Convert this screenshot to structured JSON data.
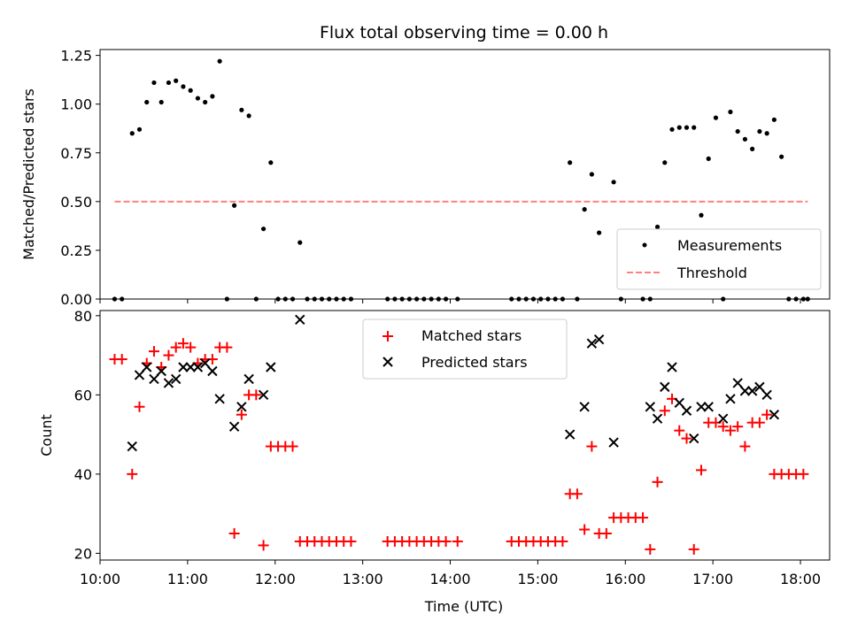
{
  "title": "Flux total observing time = 0.00 h",
  "xlabel": "Time (UTC)",
  "x_ticks": [
    "10:00",
    "11:00",
    "12:00",
    "13:00",
    "14:00",
    "15:00",
    "16:00",
    "17:00",
    "18:00"
  ],
  "colors": {
    "measurements": "#000000",
    "threshold": "#ff7f7f",
    "matched": "#ff0000",
    "predicted": "#000000"
  },
  "chart_data": [
    {
      "type": "scatter",
      "ylabel": "Matched/Predicted stars",
      "xlim": [
        "10:00",
        "18:20"
      ],
      "ylim": [
        0,
        1.28
      ],
      "y_ticks": [
        "0.00",
        "0.25",
        "0.50",
        "0.75",
        "1.00",
        "1.25"
      ],
      "legend": {
        "position": "lower-right",
        "entries": [
          "Measurements",
          "Threshold"
        ]
      },
      "series": [
        {
          "name": "Measurements",
          "marker": "dot",
          "points": [
            [
              "10:10",
              0
            ],
            [
              "10:15",
              0
            ],
            [
              "10:22",
              0.85
            ],
            [
              "10:27",
              0.87
            ],
            [
              "10:32",
              1.01
            ],
            [
              "10:37",
              1.11
            ],
            [
              "10:42",
              1.01
            ],
            [
              "10:47",
              1.11
            ],
            [
              "10:52",
              1.12
            ],
            [
              "10:57",
              1.09
            ],
            [
              "11:02",
              1.07
            ],
            [
              "11:07",
              1.03
            ],
            [
              "11:12",
              1.01
            ],
            [
              "11:17",
              1.04
            ],
            [
              "11:22",
              1.22
            ],
            [
              "11:27",
              0
            ],
            [
              "11:32",
              0.48
            ],
            [
              "11:37",
              0.97
            ],
            [
              "11:42",
              0.94
            ],
            [
              "11:47",
              0
            ],
            [
              "11:52",
              0.36
            ],
            [
              "11:57",
              0.7
            ],
            [
              "12:02",
              0
            ],
            [
              "12:07",
              0
            ],
            [
              "12:12",
              0
            ],
            [
              "12:17",
              0.29
            ],
            [
              "12:22",
              0
            ],
            [
              "12:27",
              0
            ],
            [
              "12:32",
              0
            ],
            [
              "12:37",
              0
            ],
            [
              "12:42",
              0
            ],
            [
              "12:47",
              0
            ],
            [
              "12:52",
              0
            ],
            [
              "13:17",
              0
            ],
            [
              "13:22",
              0
            ],
            [
              "13:27",
              0
            ],
            [
              "13:32",
              0
            ],
            [
              "13:37",
              0
            ],
            [
              "13:42",
              0
            ],
            [
              "13:47",
              0
            ],
            [
              "13:52",
              0
            ],
            [
              "13:57",
              0
            ],
            [
              "14:05",
              0
            ],
            [
              "14:42",
              0
            ],
            [
              "14:47",
              0
            ],
            [
              "14:52",
              0
            ],
            [
              "14:57",
              0
            ],
            [
              "15:02",
              0
            ],
            [
              "15:07",
              0
            ],
            [
              "15:12",
              0
            ],
            [
              "15:17",
              0
            ],
            [
              "15:22",
              0.7
            ],
            [
              "15:27",
              0
            ],
            [
              "15:32",
              0.46
            ],
            [
              "15:37",
              0.64
            ],
            [
              "15:42",
              0.34
            ],
            [
              "15:52",
              0.6
            ],
            [
              "15:57",
              0
            ],
            [
              "16:12",
              0
            ],
            [
              "16:17",
              0
            ],
            [
              "16:22",
              0.37
            ],
            [
              "16:27",
              0.7
            ],
            [
              "16:32",
              0.87
            ],
            [
              "16:37",
              0.88
            ],
            [
              "16:42",
              0.88
            ],
            [
              "16:47",
              0.88
            ],
            [
              "16:52",
              0.43
            ],
            [
              "16:57",
              0.72
            ],
            [
              "17:02",
              0.93
            ],
            [
              "17:07",
              0
            ],
            [
              "17:12",
              0.96
            ],
            [
              "17:17",
              0.86
            ],
            [
              "17:22",
              0.82
            ],
            [
              "17:27",
              0.77
            ],
            [
              "17:32",
              0.86
            ],
            [
              "17:37",
              0.85
            ],
            [
              "17:42",
              0.92
            ],
            [
              "17:47",
              0.73
            ],
            [
              "17:52",
              0
            ],
            [
              "17:57",
              0
            ],
            [
              "18:02",
              0
            ],
            [
              "18:05",
              0
            ]
          ]
        },
        {
          "name": "Threshold",
          "marker": "dashed-line",
          "points": [
            [
              "10:10",
              0.5
            ],
            [
              "18:05",
              0.5
            ]
          ]
        }
      ]
    },
    {
      "type": "scatter",
      "ylabel": "Count",
      "xlim": [
        "10:00",
        "18:20"
      ],
      "ylim": [
        18.3,
        81.3
      ],
      "y_ticks": [
        "20",
        "40",
        "60",
        "80"
      ],
      "legend": {
        "position": "top-center",
        "entries": [
          "Matched stars",
          "Predicted stars"
        ]
      },
      "series": [
        {
          "name": "Matched stars",
          "marker": "plus",
          "points": [
            [
              "10:10",
              69
            ],
            [
              "10:15",
              69
            ],
            [
              "10:22",
              40
            ],
            [
              "10:27",
              57
            ],
            [
              "10:32",
              68
            ],
            [
              "10:37",
              71
            ],
            [
              "10:42",
              67
            ],
            [
              "10:47",
              70
            ],
            [
              "10:52",
              72
            ],
            [
              "10:57",
              73
            ],
            [
              "11:02",
              72
            ],
            [
              "11:07",
              68
            ],
            [
              "11:12",
              69
            ],
            [
              "11:17",
              69
            ],
            [
              "11:22",
              72
            ],
            [
              "11:27",
              72
            ],
            [
              "11:32",
              25
            ],
            [
              "11:37",
              55
            ],
            [
              "11:42",
              60
            ],
            [
              "11:47",
              60
            ],
            [
              "11:52",
              22
            ],
            [
              "11:57",
              47
            ],
            [
              "12:02",
              47
            ],
            [
              "12:07",
              47
            ],
            [
              "12:12",
              47
            ],
            [
              "12:17",
              23
            ],
            [
              "12:22",
              23
            ],
            [
              "12:27",
              23
            ],
            [
              "12:32",
              23
            ],
            [
              "12:37",
              23
            ],
            [
              "12:42",
              23
            ],
            [
              "12:47",
              23
            ],
            [
              "12:52",
              23
            ],
            [
              "13:17",
              23
            ],
            [
              "13:22",
              23
            ],
            [
              "13:27",
              23
            ],
            [
              "13:32",
              23
            ],
            [
              "13:37",
              23
            ],
            [
              "13:42",
              23
            ],
            [
              "13:47",
              23
            ],
            [
              "13:52",
              23
            ],
            [
              "13:57",
              23
            ],
            [
              "14:05",
              23
            ],
            [
              "14:42",
              23
            ],
            [
              "14:47",
              23
            ],
            [
              "14:52",
              23
            ],
            [
              "14:57",
              23
            ],
            [
              "15:02",
              23
            ],
            [
              "15:07",
              23
            ],
            [
              "15:12",
              23
            ],
            [
              "15:17",
              23
            ],
            [
              "15:22",
              35
            ],
            [
              "15:27",
              35
            ],
            [
              "15:32",
              26
            ],
            [
              "15:37",
              47
            ],
            [
              "15:42",
              25
            ],
            [
              "15:47",
              25
            ],
            [
              "15:52",
              29
            ],
            [
              "15:57",
              29
            ],
            [
              "16:02",
              29
            ],
            [
              "16:07",
              29
            ],
            [
              "16:12",
              29
            ],
            [
              "16:17",
              21
            ],
            [
              "16:22",
              38
            ],
            [
              "16:27",
              56
            ],
            [
              "16:32",
              59
            ],
            [
              "16:37",
              51
            ],
            [
              "16:42",
              49
            ],
            [
              "16:47",
              21
            ],
            [
              "16:52",
              41
            ],
            [
              "16:57",
              53
            ],
            [
              "17:02",
              53
            ],
            [
              "17:07",
              52
            ],
            [
              "17:12",
              51
            ],
            [
              "17:17",
              52
            ],
            [
              "17:22",
              47
            ],
            [
              "17:27",
              53
            ],
            [
              "17:32",
              53
            ],
            [
              "17:37",
              55
            ],
            [
              "17:42",
              40
            ],
            [
              "17:47",
              40
            ],
            [
              "17:52",
              40
            ],
            [
              "17:57",
              40
            ],
            [
              "18:02",
              40
            ]
          ]
        },
        {
          "name": "Predicted stars",
          "marker": "x",
          "points": [
            [
              "10:22",
              47
            ],
            [
              "10:27",
              65
            ],
            [
              "10:32",
              67
            ],
            [
              "10:37",
              64
            ],
            [
              "10:42",
              66
            ],
            [
              "10:47",
              63
            ],
            [
              "10:52",
              64
            ],
            [
              "10:57",
              67
            ],
            [
              "11:02",
              67
            ],
            [
              "11:07",
              67
            ],
            [
              "11:12",
              68
            ],
            [
              "11:17",
              66
            ],
            [
              "11:22",
              59
            ],
            [
              "11:32",
              52
            ],
            [
              "11:37",
              57
            ],
            [
              "11:42",
              64
            ],
            [
              "11:52",
              60
            ],
            [
              "11:57",
              67
            ],
            [
              "12:17",
              79
            ],
            [
              "15:22",
              50
            ],
            [
              "15:32",
              57
            ],
            [
              "15:37",
              73
            ],
            [
              "15:42",
              74
            ],
            [
              "15:52",
              48
            ],
            [
              "16:17",
              57
            ],
            [
              "16:22",
              54
            ],
            [
              "16:27",
              62
            ],
            [
              "16:32",
              67
            ],
            [
              "16:37",
              58
            ],
            [
              "16:42",
              56
            ],
            [
              "16:47",
              49
            ],
            [
              "16:52",
              57
            ],
            [
              "16:57",
              57
            ],
            [
              "17:07",
              54
            ],
            [
              "17:12",
              59
            ],
            [
              "17:17",
              63
            ],
            [
              "17:22",
              61
            ],
            [
              "17:27",
              61
            ],
            [
              "17:32",
              62
            ],
            [
              "17:37",
              60
            ],
            [
              "17:42",
              55
            ]
          ]
        }
      ]
    }
  ]
}
